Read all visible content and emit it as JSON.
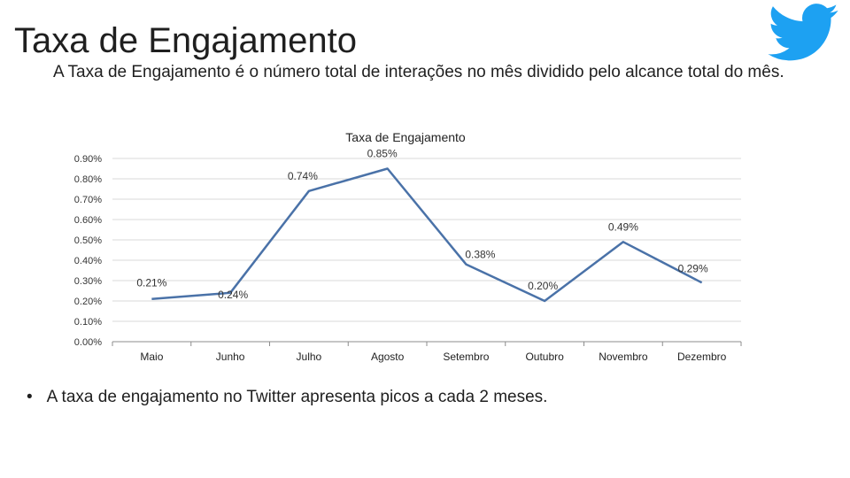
{
  "slide": {
    "title": "Taxa de Engajamento",
    "subtitle": "A Taxa de Engajamento é o número total de interações no mês dividido pelo alcance total do mês.",
    "bullet": "A taxa de engajamento no Twitter apresenta picos a cada 2 meses.",
    "logo_icon": "twitter-bird-icon",
    "logo_color": "#1DA1F2"
  },
  "chart_data": {
    "type": "line",
    "title": "Taxa de Engajamento",
    "xlabel": "",
    "ylabel": "",
    "categories": [
      "Maio",
      "Junho",
      "Julho",
      "Agosto",
      "Setembro",
      "Outubro",
      "Novembro",
      "Dezembro"
    ],
    "series": [
      {
        "values": [
          0.21,
          0.24,
          0.74,
          0.85,
          0.38,
          0.2,
          0.49,
          0.29
        ],
        "labels": [
          "0.21%",
          "0.24%",
          "0.74%",
          "0.85%",
          "0.38%",
          "0.20%",
          "0.49%",
          "0.29%"
        ],
        "color": "#4A72A8"
      }
    ],
    "ylim": [
      0,
      0.9
    ],
    "yticks": [
      0.0,
      0.1,
      0.2,
      0.3,
      0.4,
      0.5,
      0.6,
      0.7,
      0.8,
      0.9
    ],
    "ytick_labels": [
      "0.00%",
      "0.10%",
      "0.20%",
      "0.30%",
      "0.40%",
      "0.50%",
      "0.60%",
      "0.70%",
      "0.80%",
      "0.90%"
    ],
    "grid": true,
    "legend": "none"
  }
}
